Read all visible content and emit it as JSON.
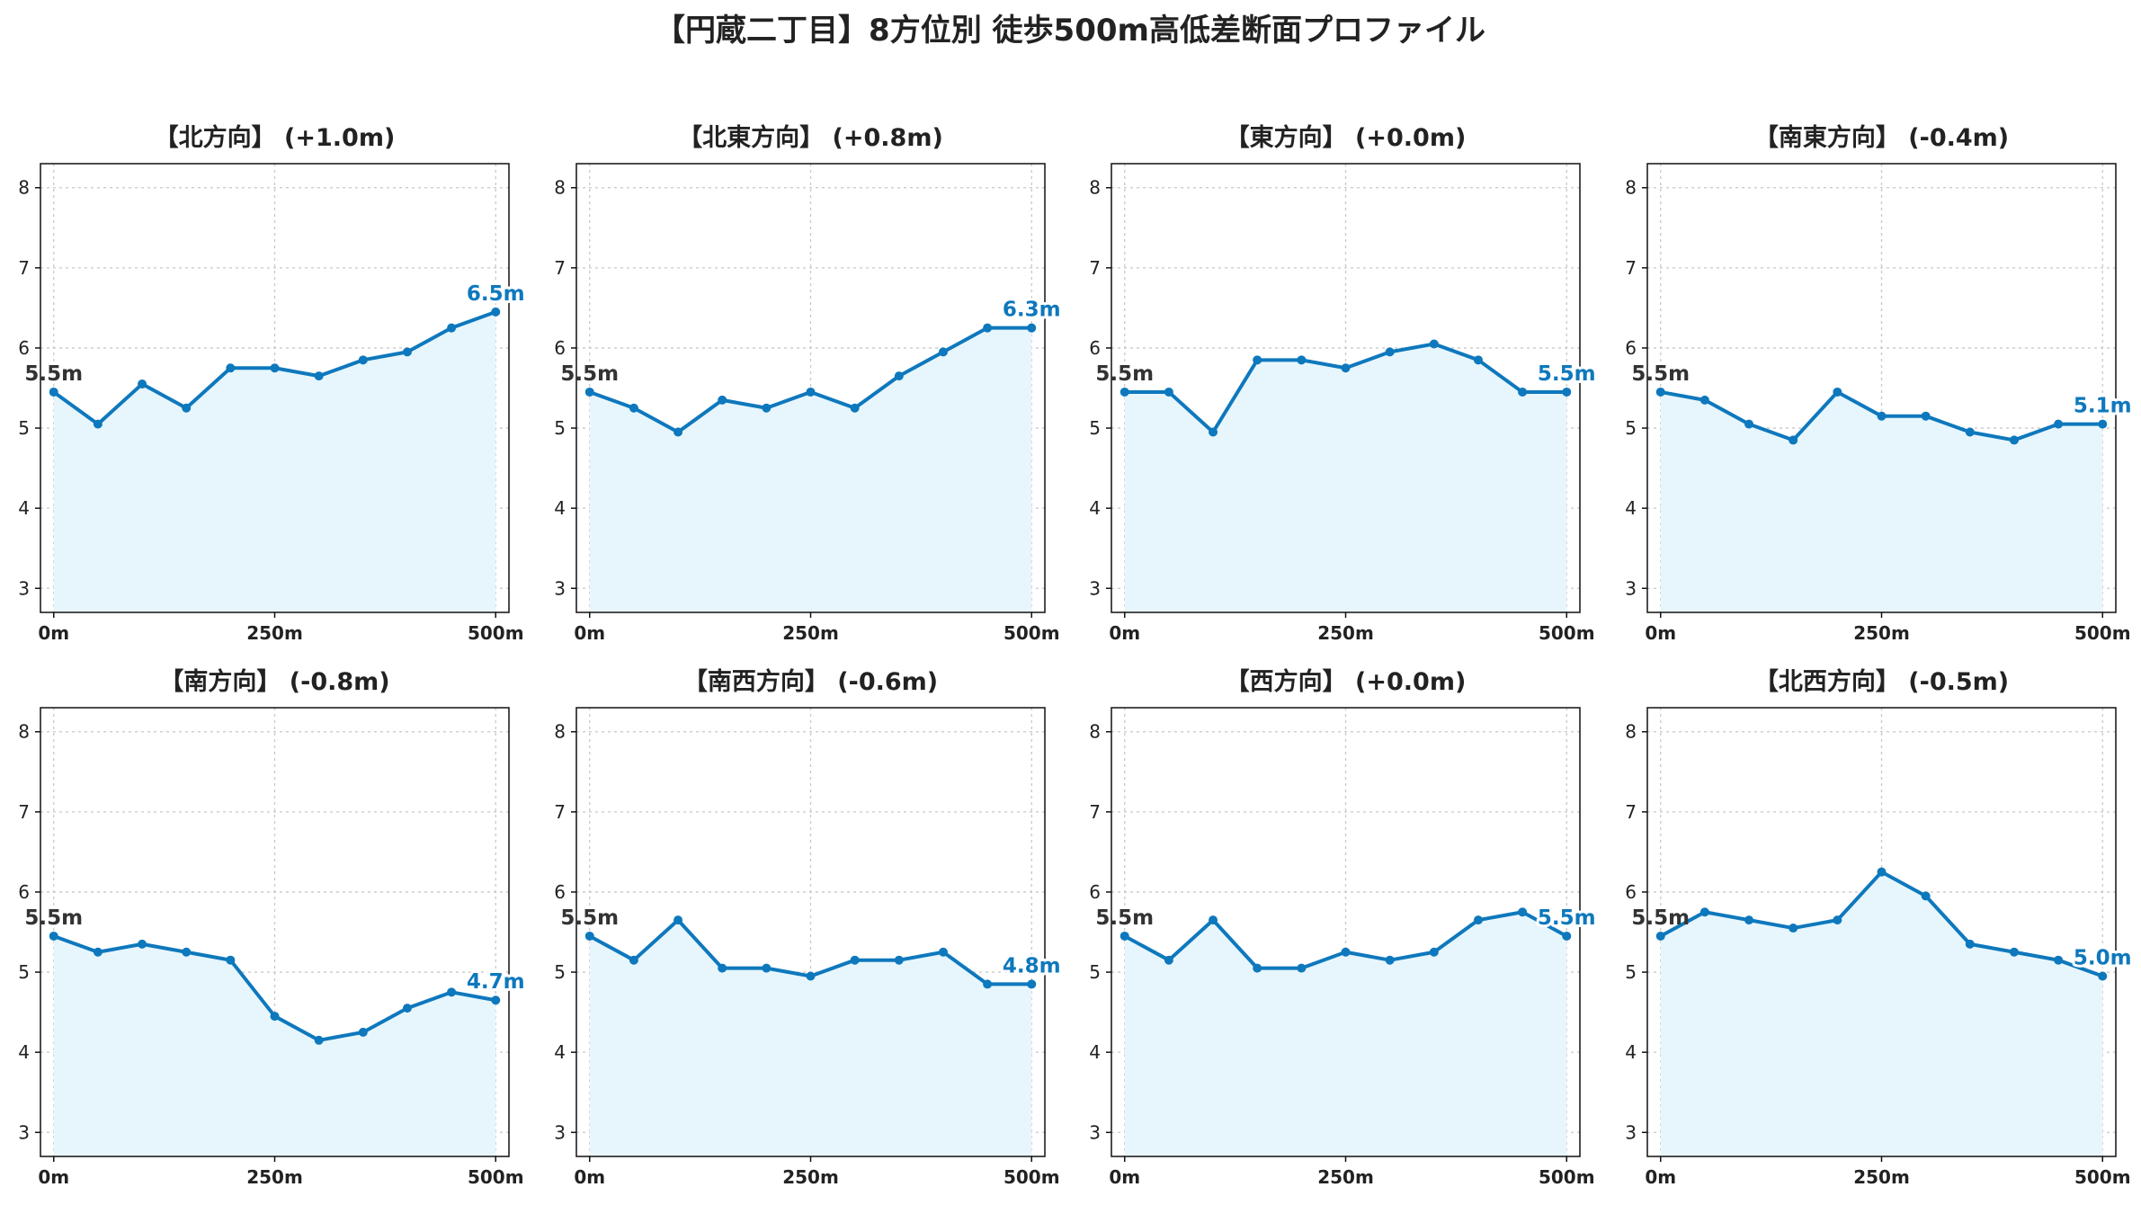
{
  "colors": {
    "line": "#0e78bd",
    "fill": "#e7f6fc",
    "end_label": "#0e78bd",
    "start_label": "#333333"
  },
  "chart_data": {
    "type": "line",
    "title": "【円蔵二丁目】8方位別 徒歩500m高低差断面プロファイル",
    "layout": "grid 2x4",
    "x": [
      0,
      50,
      100,
      150,
      200,
      250,
      300,
      350,
      400,
      450,
      500
    ],
    "x_ticks": [
      0,
      250,
      500
    ],
    "x_tick_labels": [
      "0m",
      "250m",
      "500m"
    ],
    "xlim": [
      -15,
      515
    ],
    "ylim": [
      2.7,
      8.3
    ],
    "y_ticks": [
      3,
      4,
      5,
      6,
      7,
      8
    ],
    "y_tick_labels": [
      "3",
      "4",
      "5",
      "6",
      "7",
      "8"
    ],
    "grid": true,
    "fill_below": true,
    "panels": [
      {
        "title": "【北方向】 (+1.0m)",
        "values": [
          5.45,
          5.05,
          5.55,
          5.25,
          5.75,
          5.75,
          5.65,
          5.85,
          5.95,
          6.25,
          6.45
        ],
        "start_label": "5.5m",
        "end_label": "6.5m"
      },
      {
        "title": "【北東方向】 (+0.8m)",
        "values": [
          5.45,
          5.25,
          4.95,
          5.35,
          5.25,
          5.45,
          5.25,
          5.65,
          5.95,
          6.25,
          6.25
        ],
        "start_label": "5.5m",
        "end_label": "6.3m"
      },
      {
        "title": "【東方向】 (+0.0m)",
        "values": [
          5.45,
          5.45,
          4.95,
          5.85,
          5.85,
          5.75,
          5.95,
          6.05,
          5.85,
          5.45,
          5.45
        ],
        "start_label": "5.5m",
        "end_label": "5.5m"
      },
      {
        "title": "【南東方向】 (-0.4m)",
        "values": [
          5.45,
          5.35,
          5.05,
          4.85,
          5.45,
          5.15,
          5.15,
          4.95,
          4.85,
          5.05,
          5.05
        ],
        "start_label": "5.5m",
        "end_label": "5.1m"
      },
      {
        "title": "【南方向】 (-0.8m)",
        "values": [
          5.45,
          5.25,
          5.35,
          5.25,
          5.15,
          4.45,
          4.15,
          4.25,
          4.55,
          4.75,
          4.65
        ],
        "start_label": "5.5m",
        "end_label": "4.7m"
      },
      {
        "title": "【南西方向】 (-0.6m)",
        "values": [
          5.45,
          5.15,
          5.65,
          5.05,
          5.05,
          4.95,
          5.15,
          5.15,
          5.25,
          4.85,
          4.85
        ],
        "start_label": "5.5m",
        "end_label": "4.8m"
      },
      {
        "title": "【西方向】 (+0.0m)",
        "values": [
          5.45,
          5.15,
          5.65,
          5.05,
          5.05,
          5.25,
          5.15,
          5.25,
          5.65,
          5.75,
          5.45
        ],
        "start_label": "5.5m",
        "end_label": "5.5m"
      },
      {
        "title": "【北西方向】 (-0.5m)",
        "values": [
          5.45,
          5.75,
          5.65,
          5.55,
          5.65,
          6.25,
          5.95,
          5.35,
          5.25,
          5.15,
          4.95
        ],
        "start_label": "5.5m",
        "end_label": "5.0m"
      }
    ]
  }
}
